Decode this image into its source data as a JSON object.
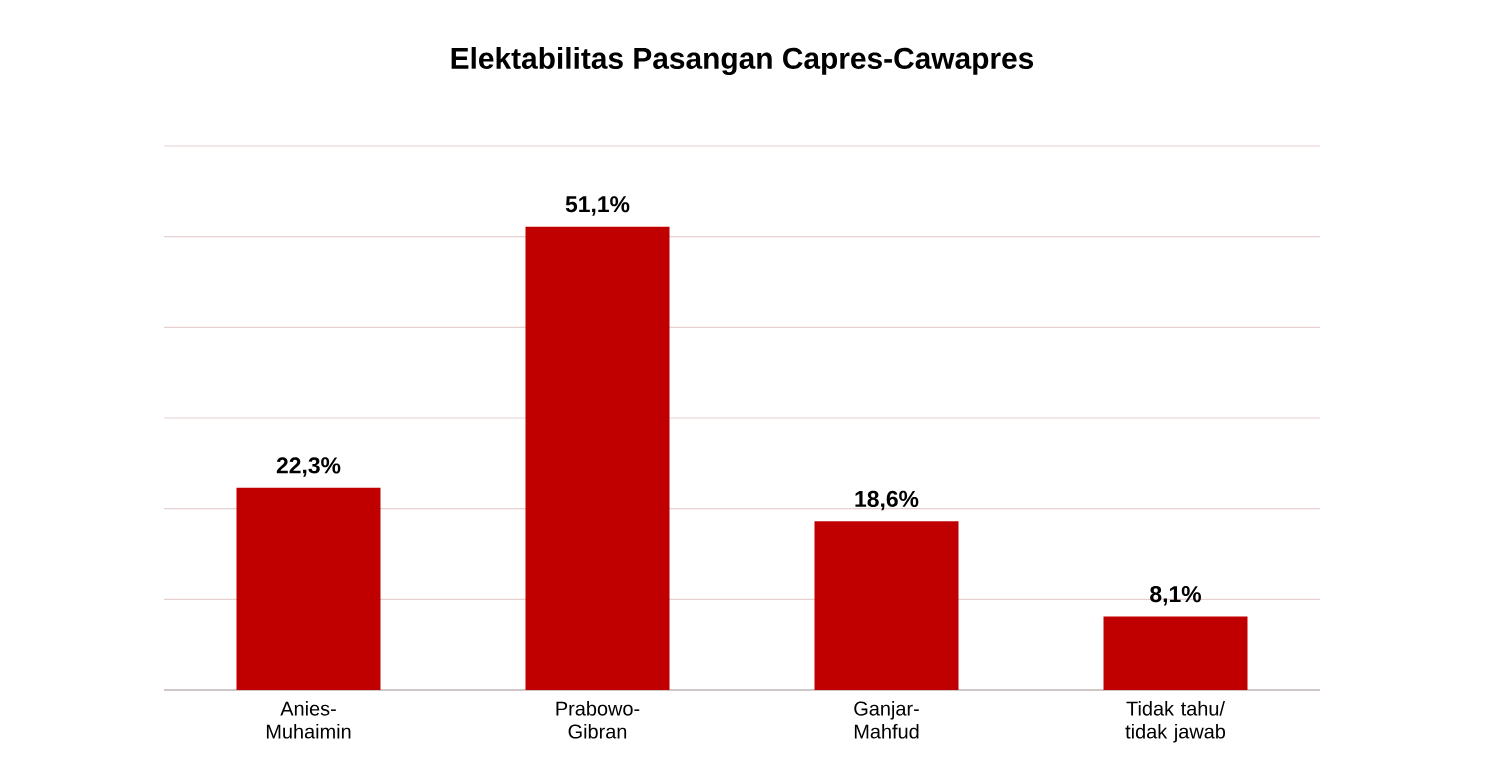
{
  "chart_data": {
    "type": "bar",
    "title": "Elektabilitas Pasangan Capres-Cawapres",
    "categories": [
      "Anies-Muhaimin",
      "Prabowo-Gibran",
      "Ganjar-Mahfud",
      "Tidak tahu/ tidak jawab"
    ],
    "values": [
      22.3,
      51.1,
      18.6,
      8.1
    ],
    "value_labels": [
      "22,3%",
      "51,1%",
      "18,6%",
      "8,1%"
    ],
    "color": "#c00000",
    "ylim": [
      0,
      60
    ],
    "yticks": [
      {
        "value": 0,
        "label": null
      },
      {
        "value": 10,
        "label": null
      },
      {
        "value": 20,
        "label": null
      },
      {
        "value": 30,
        "label": null
      },
      {
        "value": 40,
        "label": null
      },
      {
        "value": 50,
        "label": null
      },
      {
        "value": 60,
        "label": null
      }
    ],
    "grid": "y",
    "tick_labels": "x"
  }
}
